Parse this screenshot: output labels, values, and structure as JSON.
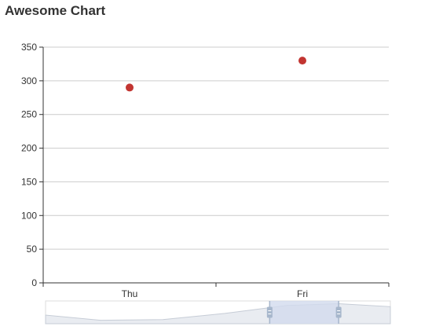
{
  "chart_data": {
    "type": "scatter",
    "title": "Awesome Chart",
    "categories": [
      "Thu",
      "Fri"
    ],
    "series": [
      {
        "values": [
          290,
          330
        ]
      }
    ],
    "ylim": [
      0,
      350
    ],
    "y_ticks": [
      0,
      50,
      100,
      150,
      200,
      250,
      300,
      350
    ],
    "grid": true,
    "data_zoom": {
      "range_start": 0.65,
      "range_end": 0.85
    },
    "colors": {
      "point": "#c23531",
      "grid": "#cccccc",
      "axis": "#333333",
      "zoom_fill": "#d2dbee",
      "zoom_handle": "#a7b7cc"
    }
  }
}
